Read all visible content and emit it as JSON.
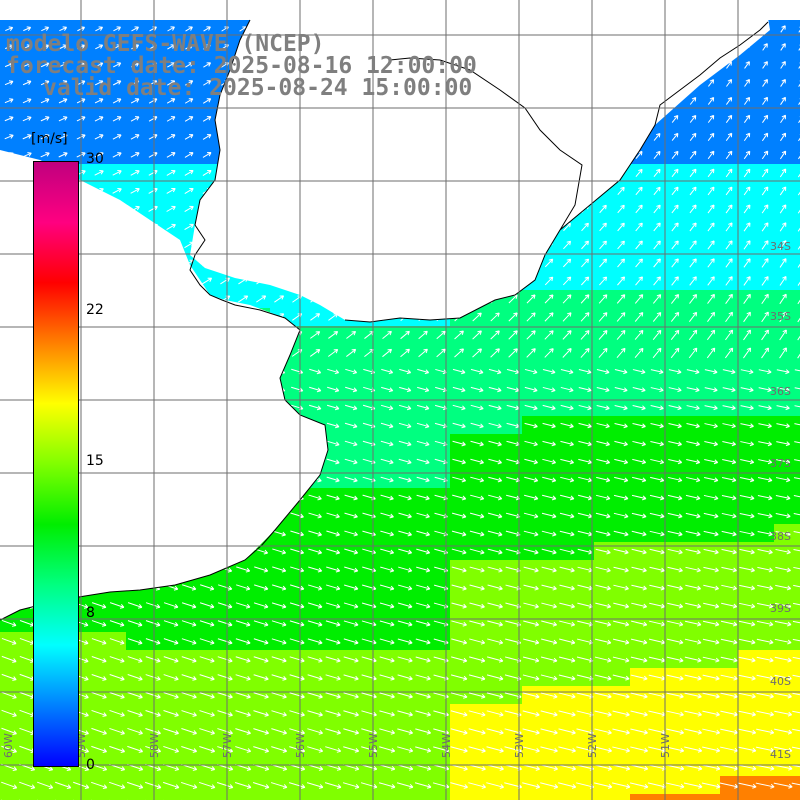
{
  "title": {
    "line1": "modelo GEFS-WAVE (NCEP)",
    "line2": "forecast date: 2025-08-16 12:00:00",
    "line3": "valid date: 2025-08-24 15:00:00"
  },
  "colorbar": {
    "unit": "[m/s]",
    "ticks": [
      "30",
      "22",
      "15",
      "8",
      "0"
    ],
    "range": [
      0,
      30
    ],
    "colors": [
      "#0000ff",
      "#0080ff",
      "#00ffff",
      "#00ff80",
      "#00ee00",
      "#80ff00",
      "#ffff00",
      "#ff8000",
      "#ff0000",
      "#ff0080",
      "#c0007f"
    ]
  },
  "map": {
    "variable": "wind speed and direction",
    "lat_labels": [
      "34S",
      "35S",
      "36S",
      "37S",
      "38S",
      "39S",
      "40S",
      "41S"
    ],
    "lon_labels": [
      "60W",
      "59W",
      "58W",
      "57W",
      "56W",
      "55W",
      "54W",
      "53W",
      "52W",
      "51W"
    ],
    "coastline_color": "#000000",
    "grid_color": "#6e6e6e",
    "arrow_color": "#ffffff",
    "land_color": "#ffffff"
  }
}
